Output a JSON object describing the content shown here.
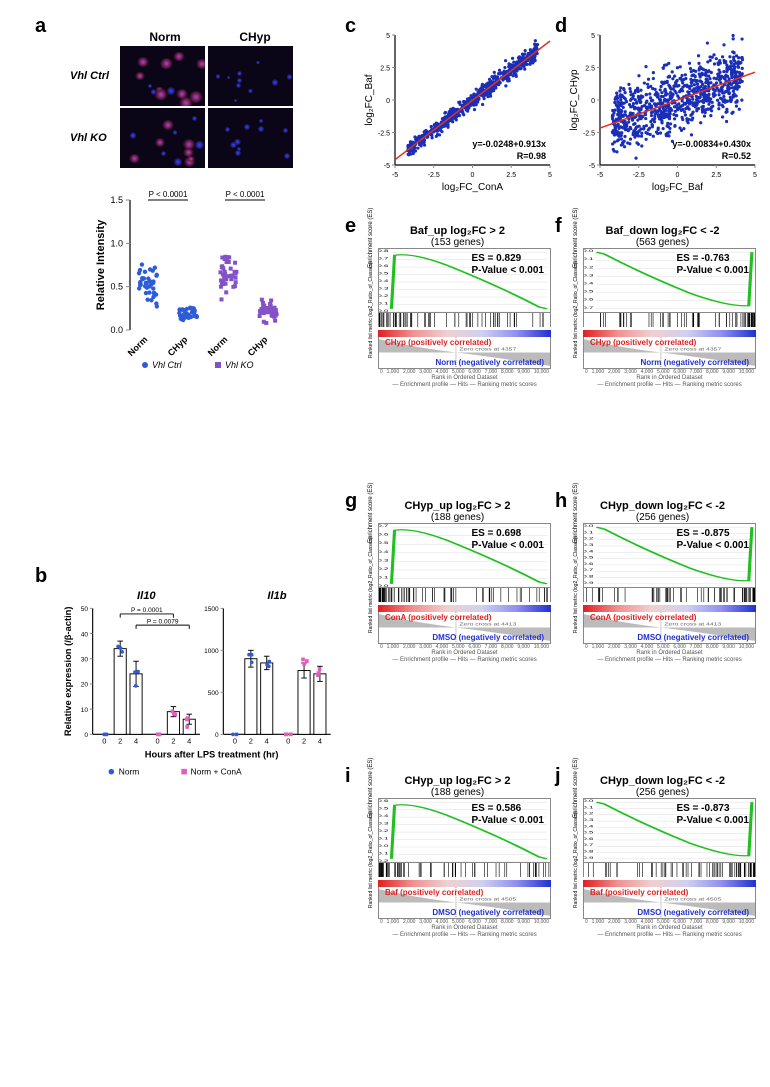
{
  "panels": {
    "a": "a",
    "b": "b",
    "c": "c",
    "d": "d",
    "e": "e",
    "f": "f",
    "g": "g",
    "h": "h",
    "i": "i",
    "j": "j"
  },
  "microscopy": {
    "col_labels": [
      "Norm",
      "CHyp"
    ],
    "row_labels": [
      "Vhl Ctrl",
      "Vhl KO"
    ],
    "bg_color": "#0a0618"
  },
  "scatter_a": {
    "ylabel": "Relative Intensity",
    "ylim": [
      0,
      1.5
    ],
    "ytick_step": 0.5,
    "x_labels": [
      "Norm",
      "CHyp",
      "Norm",
      "CHyp"
    ],
    "pvals": [
      "P < 0.0001",
      "P < 0.0001"
    ],
    "legend": [
      {
        "label": "Vhl Ctrl",
        "color": "#2e5cd8",
        "shape": "circle"
      },
      {
        "label": "Vhl KO",
        "color": "#8452c8",
        "shape": "square"
      }
    ],
    "groups": [
      {
        "x": 0,
        "color": "#2e5cd8",
        "n": 40,
        "mean": 0.55,
        "spread": 0.3,
        "shape": "circle"
      },
      {
        "x": 1,
        "color": "#2e5cd8",
        "n": 40,
        "mean": 0.18,
        "spread": 0.12,
        "shape": "circle"
      },
      {
        "x": 2,
        "color": "#8452c8",
        "n": 40,
        "mean": 0.62,
        "spread": 0.32,
        "shape": "square"
      },
      {
        "x": 3,
        "color": "#8452c8",
        "n": 40,
        "mean": 0.22,
        "spread": 0.15,
        "shape": "square"
      }
    ]
  },
  "panel_b": {
    "ylabel": "Relative expression (/β-actin)",
    "xlabel": "Hours after LPS treatment (hr)",
    "legend": [
      {
        "label": "Norm",
        "color": "#2e5cd8",
        "shape": "circle"
      },
      {
        "label": "Norm + ConA",
        "color": "#e060c0",
        "shape": "square"
      }
    ],
    "subplots": [
      {
        "title": "Il10",
        "ylim": [
          0,
          50
        ],
        "yticks": [
          0,
          10,
          20,
          30,
          40,
          50
        ],
        "x": [
          "0",
          "2",
          "4",
          "0",
          "2",
          "4"
        ],
        "bars": [
          0,
          34,
          24,
          0,
          9,
          6
        ],
        "err": [
          0,
          3,
          5,
          0,
          2,
          2
        ],
        "point_colors": [
          "#2e5cd8",
          "#2e5cd8",
          "#2e5cd8",
          "#e060c0",
          "#e060c0",
          "#e060c0"
        ],
        "pvals": [
          {
            "from": 1,
            "to": 4,
            "label": "P = 0.0001"
          },
          {
            "from": 2,
            "to": 5,
            "label": "P = 0.0079"
          }
        ]
      },
      {
        "title": "Il1b",
        "ylim": [
          0,
          1500
        ],
        "yticks": [
          0,
          500,
          1000,
          1500
        ],
        "x": [
          "0",
          "2",
          "4",
          "0",
          "2",
          "4"
        ],
        "bars": [
          0,
          900,
          850,
          0,
          760,
          720
        ],
        "err": [
          0,
          100,
          80,
          0,
          90,
          90
        ],
        "point_colors": [
          "#2e5cd8",
          "#2e5cd8",
          "#2e5cd8",
          "#e060c0",
          "#e060c0",
          "#e060c0"
        ],
        "pvals": []
      }
    ]
  },
  "scatter_c": {
    "xlabel": "log₂FC_ConA",
    "ylabel": "log₂FC_Baf",
    "xlim": [
      -5,
      5
    ],
    "ylim": [
      -5,
      5
    ],
    "tick_step": 2.5,
    "equation": "y=-0.0248+0.913x",
    "r": "R=0.98",
    "point_color": "#1a2fb8",
    "line_color": "#e03020",
    "slope": 0.913,
    "intercept": -0.0248,
    "spread": 0.3,
    "n": 700
  },
  "scatter_d": {
    "xlabel": "log₂FC_Baf",
    "ylabel": "log₂FC_CHyp",
    "xlim": [
      -5,
      5
    ],
    "ylim": [
      -5,
      5
    ],
    "tick_step": 2.5,
    "equation": "y=-0.00834+0.430x",
    "r": "R=0.52",
    "point_color": "#1a2fb8",
    "line_color": "#e03020",
    "slope": 0.43,
    "intercept": -0.00834,
    "spread": 1.2,
    "n": 900
  },
  "gsea_common": {
    "xlabel": "Rank in Ordered Dataset",
    "xticks": [
      "0",
      "1,000",
      "2,000",
      "3,000",
      "4,000",
      "5,000",
      "6,000",
      "7,000",
      "8,000",
      "9,000",
      "10,000"
    ],
    "legend": "— Enrichment profile   — Hits   — Ranking metric scores",
    "ylabel_es": "Enrichment score (ES)",
    "ylabel_rank": "Ranked list metric (log2_Ratio_of_Classes)",
    "zero_cross_e": "Zero cross at 4357",
    "zero_cross_gh": "Zero cross at 4413",
    "zero_cross_ij": "Zero cross at 4505",
    "grad_colors": [
      "#e02020",
      "#f09090",
      "#f0d0d0",
      "#d0d0f0",
      "#9090f0",
      "#2030d0"
    ]
  },
  "gsea": {
    "e": {
      "title": "Baf_up log₂FC > 2",
      "sub": "(153 genes)",
      "es": "ES = 0.829",
      "pv": "P-Value < 0.001",
      "shape": "up",
      "pos": "CHyp (positively correlated)",
      "neg": "Norm (negatively correlated)",
      "yticks": [
        "0.0",
        "0.1",
        "0.2",
        "0.3",
        "0.4",
        "0.5",
        "0.6",
        "0.7",
        "0.8"
      ],
      "rankticks": [
        "10",
        "5",
        "0",
        "-5",
        "-10"
      ],
      "hits_side": "left"
    },
    "f": {
      "title": "Baf_down log₂FC < -2",
      "sub": "(563 genes)",
      "es": "ES = -0.763",
      "pv": "P-Value < 0.001",
      "shape": "down",
      "pos": "CHyp (positively correlated)",
      "neg": "Norm (negatively correlated)",
      "yticks": [
        "0.0",
        "-0.1",
        "-0.2",
        "-0.3",
        "-0.4",
        "-0.5",
        "-0.6",
        "-0.7"
      ],
      "rankticks": [
        "10",
        "5",
        "0",
        "-5",
        "-10"
      ],
      "hits_side": "right"
    },
    "g": {
      "title": "CHyp_up log₂FC > 2",
      "sub": "(188 genes)",
      "es": "ES = 0.698",
      "pv": "P-Value < 0.001",
      "shape": "up",
      "pos": "ConA (positively correlated)",
      "neg": "DMSO (negatively correlated)",
      "yticks": [
        "0.0",
        "0.1",
        "0.2",
        "0.3",
        "0.4",
        "0.5",
        "0.6",
        "0.7"
      ],
      "rankticks": [
        "5",
        "0",
        "-5"
      ],
      "hits_side": "left"
    },
    "h": {
      "title": "CHyp_down log₂FC < -2",
      "sub": "(256 genes)",
      "es": "ES = -0.875",
      "pv": "P-Value < 0.001",
      "shape": "down",
      "pos": "ConA (positively correlated)",
      "neg": "DMSO (negatively correlated)",
      "yticks": [
        "0.0",
        "-0.1",
        "-0.2",
        "-0.3",
        "-0.4",
        "-0.5",
        "-0.6",
        "-0.7",
        "-0.8",
        "-0.9"
      ],
      "rankticks": [
        "5",
        "0",
        "-5"
      ],
      "hits_side": "right"
    },
    "i": {
      "title": "CHyp_up log₂FC > 2",
      "sub": "(188 genes)",
      "es": "ES = 0.586",
      "pv": "P-Value < 0.001",
      "shape": "up",
      "pos": "Baf (positively correlated)",
      "neg": "DMSO (negatively correlated)",
      "yticks": [
        "-0.2",
        "-0.1",
        "0.0",
        "0.1",
        "0.2",
        "0.3",
        "0.4",
        "0.5",
        "0.6"
      ],
      "rankticks": [
        "5",
        "0",
        "-5"
      ],
      "hits_side": "left"
    },
    "j": {
      "title": "CHyp_down log₂FC < -2",
      "sub": "(256 genes)",
      "es": "ES =  -0.873",
      "pv": "P-Value < 0.001",
      "shape": "down",
      "pos": "Baf (positively correlated)",
      "neg": "DMSO (negatively correlated)",
      "yticks": [
        "0.0",
        "-0.1",
        "-0.2",
        "-0.3",
        "-0.4",
        "-0.5",
        "-0.6",
        "-0.7",
        "-0.8",
        "-0.9"
      ],
      "rankticks": [
        "5",
        "0",
        "-5"
      ],
      "hits_side": "right"
    }
  }
}
